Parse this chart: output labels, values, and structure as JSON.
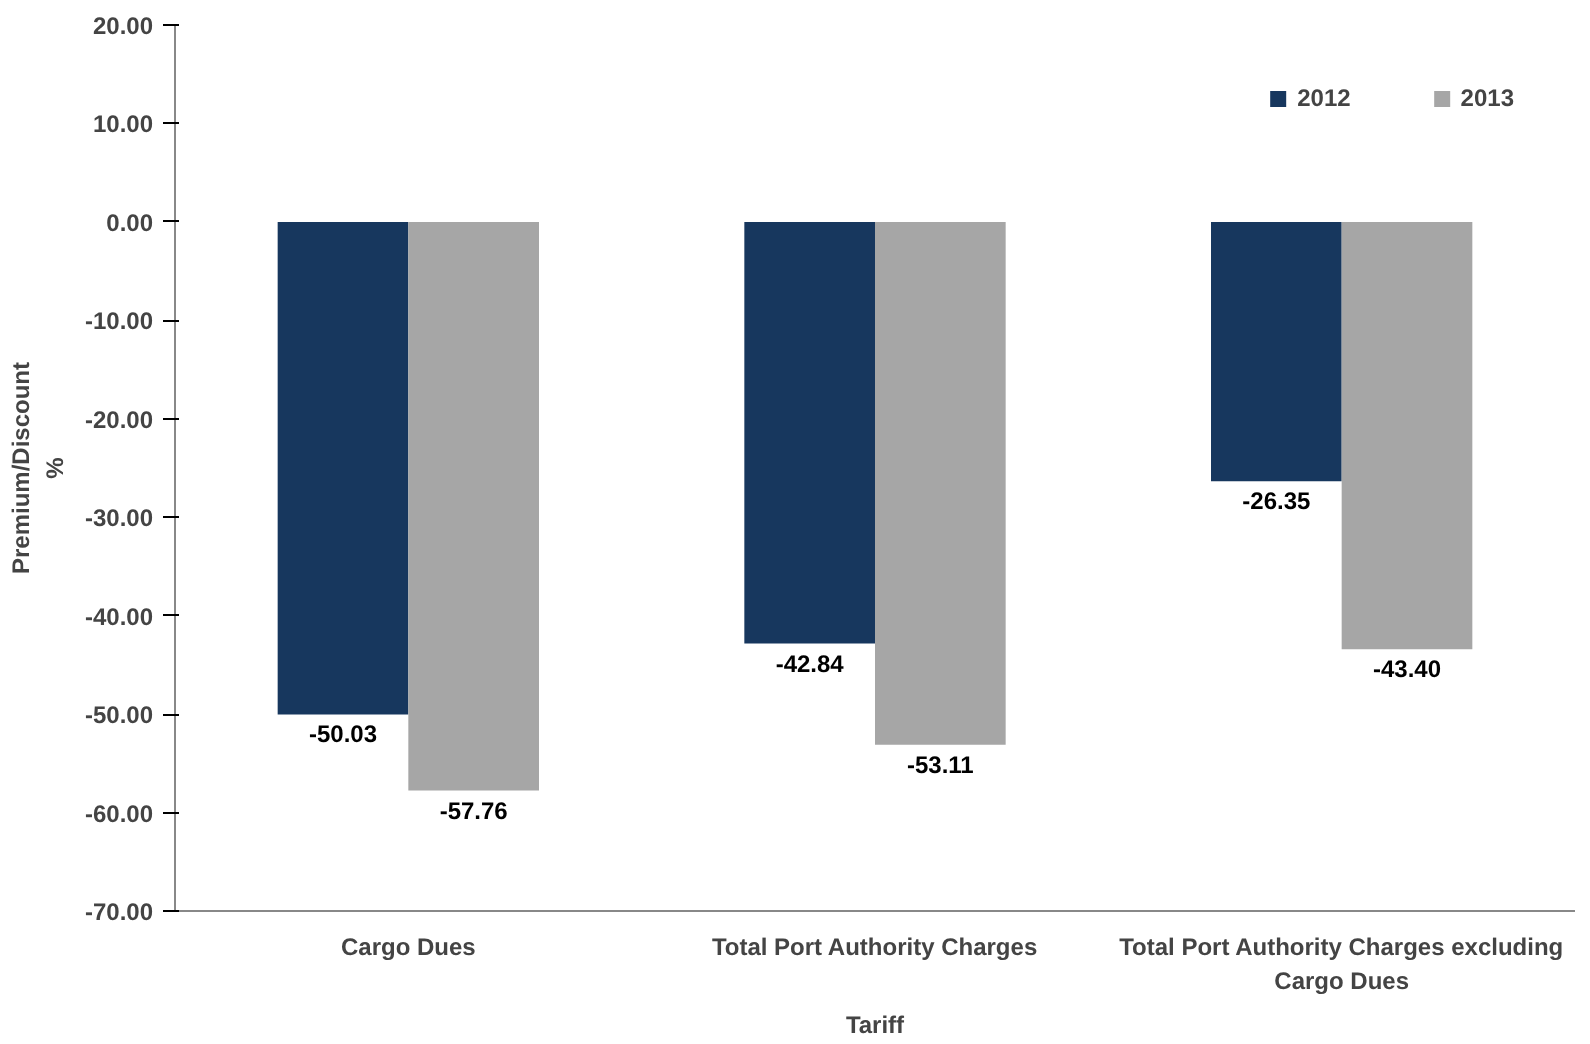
{
  "chart_data": {
    "type": "bar",
    "xlabel": "Tariff",
    "ylabel": "Premium/Discount\n%",
    "categories": [
      "Cargo Dues",
      "Total Port Authority Charges",
      "Total Port Authority Charges excluding Cargo Dues"
    ],
    "series": [
      {
        "name": "2012",
        "color": "#17375e",
        "values": [
          -50.03,
          -42.84,
          -26.35
        ],
        "value_labels": [
          "-50.03",
          "-42.84",
          "-26.35"
        ]
      },
      {
        "name": "2013",
        "color": "#a6a6a6",
        "values": [
          -57.76,
          -53.11,
          -43.4
        ],
        "value_labels": [
          "-57.76",
          "-53.11",
          "-43.40"
        ]
      }
    ],
    "ylim": [
      -70,
      20
    ],
    "yticks": [
      {
        "value": -70,
        "label": "-70.00"
      },
      {
        "value": -60,
        "label": "-60.00"
      },
      {
        "value": -50,
        "label": "-50.00"
      },
      {
        "value": -40,
        "label": "-40.00"
      },
      {
        "value": -30,
        "label": "-30.00"
      },
      {
        "value": -20,
        "label": "-20.00"
      },
      {
        "value": -10,
        "label": "-10.00"
      },
      {
        "value": 0,
        "label": "0.00"
      },
      {
        "value": 10,
        "label": "10.00"
      },
      {
        "value": 20,
        "label": "20.00"
      }
    ],
    "grid": false,
    "legend": "top right"
  }
}
